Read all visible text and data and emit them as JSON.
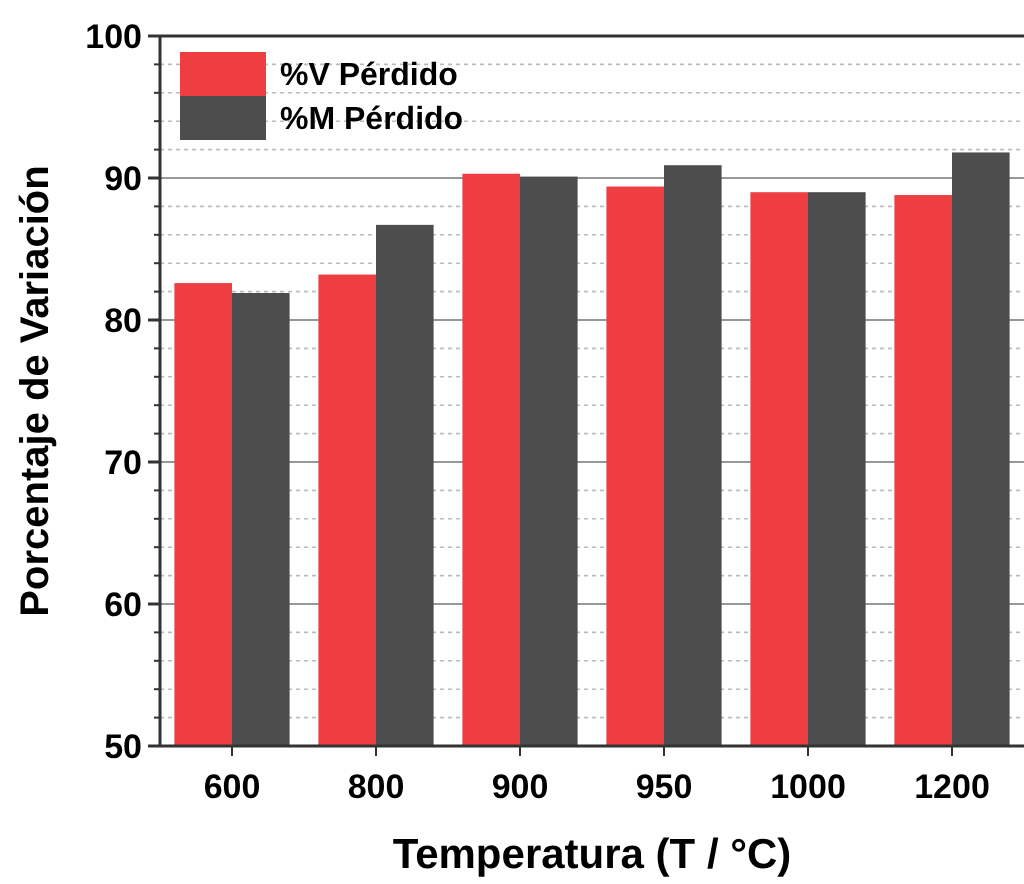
{
  "chart_data": {
    "type": "bar",
    "xlabel": "Temperatura (T / °C)",
    "ylabel": "Porcentaje de Variación",
    "categories": [
      "600",
      "800",
      "900",
      "950",
      "1000",
      "1200"
    ],
    "series": [
      {
        "name": "%V Pérdido",
        "color": "#ef3e42",
        "values": [
          82.6,
          83.2,
          90.3,
          89.4,
          89.0,
          88.8
        ]
      },
      {
        "name": "%M Pérdido",
        "color": "#4d4d4d",
        "values": [
          81.9,
          86.7,
          90.1,
          90.9,
          89.0,
          91.8
        ]
      }
    ],
    "ylim": [
      50,
      100
    ],
    "yticks": [
      50,
      60,
      70,
      80,
      90,
      100
    ],
    "grid": true,
    "legend": "top left"
  }
}
